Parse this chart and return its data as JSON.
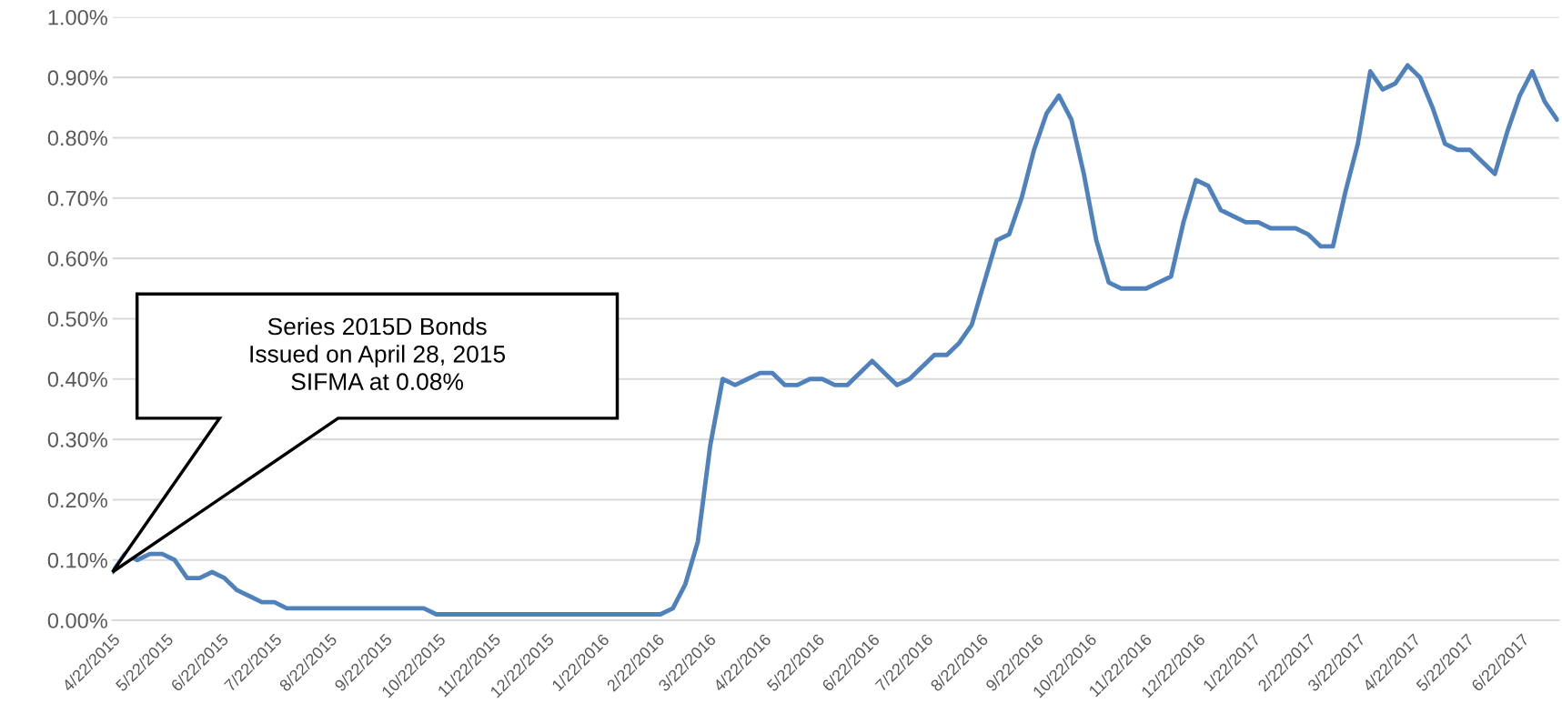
{
  "chart_data": {
    "type": "line",
    "x": [
      "2015-04-22",
      "2015-04-29",
      "2015-05-06",
      "2015-05-13",
      "2015-05-20",
      "2015-05-27",
      "2015-06-03",
      "2015-06-10",
      "2015-06-17",
      "2015-06-24",
      "2015-07-01",
      "2015-07-08",
      "2015-07-15",
      "2015-07-22",
      "2015-07-29",
      "2015-08-05",
      "2015-08-12",
      "2015-08-19",
      "2015-08-26",
      "2015-09-02",
      "2015-09-09",
      "2015-09-16",
      "2015-09-23",
      "2015-09-30",
      "2015-10-07",
      "2015-10-14",
      "2015-10-21",
      "2015-10-28",
      "2015-11-04",
      "2015-11-11",
      "2015-11-18",
      "2015-11-25",
      "2015-12-02",
      "2015-12-09",
      "2015-12-16",
      "2015-12-23",
      "2015-12-30",
      "2016-01-06",
      "2016-01-13",
      "2016-01-20",
      "2016-01-27",
      "2016-02-03",
      "2016-02-10",
      "2016-02-17",
      "2016-02-24",
      "2016-03-02",
      "2016-03-09",
      "2016-03-16",
      "2016-03-23",
      "2016-03-30",
      "2016-04-06",
      "2016-04-13",
      "2016-04-20",
      "2016-04-27",
      "2016-05-04",
      "2016-05-11",
      "2016-05-18",
      "2016-05-25",
      "2016-06-01",
      "2016-06-08",
      "2016-06-15",
      "2016-06-22",
      "2016-06-29",
      "2016-07-06",
      "2016-07-13",
      "2016-07-20",
      "2016-07-27",
      "2016-08-03",
      "2016-08-10",
      "2016-08-17",
      "2016-08-24",
      "2016-08-31",
      "2016-09-07",
      "2016-09-14",
      "2016-09-21",
      "2016-09-28",
      "2016-10-05",
      "2016-10-12",
      "2016-10-19",
      "2016-10-26",
      "2016-11-02",
      "2016-11-09",
      "2016-11-16",
      "2016-11-23",
      "2016-11-30",
      "2016-12-07",
      "2016-12-14",
      "2016-12-21",
      "2016-12-28",
      "2017-01-04",
      "2017-01-11",
      "2017-01-18",
      "2017-01-25",
      "2017-02-01",
      "2017-02-08",
      "2017-02-15",
      "2017-02-22",
      "2017-03-01",
      "2017-03-08",
      "2017-03-15",
      "2017-03-22",
      "2017-03-29",
      "2017-04-05",
      "2017-04-12",
      "2017-04-19",
      "2017-04-26",
      "2017-05-03",
      "2017-05-10",
      "2017-05-17",
      "2017-05-24",
      "2017-05-31",
      "2017-06-07",
      "2017-06-14",
      "2017-06-21",
      "2017-06-28",
      "2017-07-05",
      "2017-07-12"
    ],
    "series": [
      {
        "color": "#4f81bd",
        "values": [
          0.08,
          0.11,
          0.1,
          0.11,
          0.11,
          0.1,
          0.07,
          0.07,
          0.08,
          0.07,
          0.05,
          0.04,
          0.03,
          0.03,
          0.02,
          0.02,
          0.02,
          0.02,
          0.02,
          0.02,
          0.02,
          0.02,
          0.02,
          0.02,
          0.02,
          0.02,
          0.01,
          0.01,
          0.01,
          0.01,
          0.01,
          0.01,
          0.01,
          0.01,
          0.01,
          0.01,
          0.01,
          0.01,
          0.01,
          0.01,
          0.01,
          0.01,
          0.01,
          0.01,
          0.01,
          0.02,
          0.06,
          0.13,
          0.29,
          0.4,
          0.39,
          0.4,
          0.41,
          0.41,
          0.39,
          0.39,
          0.4,
          0.4,
          0.39,
          0.39,
          0.41,
          0.43,
          0.41,
          0.39,
          0.4,
          0.42,
          0.44,
          0.44,
          0.46,
          0.49,
          0.56,
          0.63,
          0.64,
          0.7,
          0.78,
          0.84,
          0.87,
          0.83,
          0.74,
          0.63,
          0.56,
          0.55,
          0.55,
          0.55,
          0.56,
          0.57,
          0.66,
          0.73,
          0.72,
          0.68,
          0.67,
          0.66,
          0.66,
          0.65,
          0.65,
          0.65,
          0.64,
          0.62,
          0.62,
          0.71,
          0.79,
          0.91,
          0.88,
          0.89,
          0.92,
          0.9,
          0.85,
          0.79,
          0.78,
          0.78,
          0.76,
          0.74,
          0.81,
          0.87,
          0.91,
          0.86,
          0.83
        ]
      }
    ],
    "xlim": [
      "2015-04-22",
      "2017-07-13"
    ],
    "xticks": [
      {
        "value": "2015-04-22",
        "label": "4/22/2015"
      },
      {
        "value": "2015-05-22",
        "label": "5/22/2015"
      },
      {
        "value": "2015-06-22",
        "label": "6/22/2015"
      },
      {
        "value": "2015-07-22",
        "label": "7/22/2015"
      },
      {
        "value": "2015-08-22",
        "label": "8/22/2015"
      },
      {
        "value": "2015-09-22",
        "label": "9/22/2015"
      },
      {
        "value": "2015-10-22",
        "label": "10/22/2015"
      },
      {
        "value": "2015-11-22",
        "label": "11/22/2015"
      },
      {
        "value": "2015-12-22",
        "label": "12/22/2015"
      },
      {
        "value": "2016-01-22",
        "label": "1/22/2016"
      },
      {
        "value": "2016-02-22",
        "label": "2/22/2016"
      },
      {
        "value": "2016-03-22",
        "label": "3/22/2016"
      },
      {
        "value": "2016-04-22",
        "label": "4/22/2016"
      },
      {
        "value": "2016-05-22",
        "label": "5/22/2016"
      },
      {
        "value": "2016-06-22",
        "label": "6/22/2016"
      },
      {
        "value": "2016-07-22",
        "label": "7/22/2016"
      },
      {
        "value": "2016-08-22",
        "label": "8/22/2016"
      },
      {
        "value": "2016-09-22",
        "label": "9/22/2016"
      },
      {
        "value": "2016-10-22",
        "label": "10/22/2016"
      },
      {
        "value": "2016-11-22",
        "label": "11/22/2016"
      },
      {
        "value": "2016-12-22",
        "label": "12/22/2016"
      },
      {
        "value": "2017-01-22",
        "label": "1/22/2017"
      },
      {
        "value": "2017-02-22",
        "label": "2/22/2017"
      },
      {
        "value": "2017-03-22",
        "label": "3/22/2017"
      },
      {
        "value": "2017-04-22",
        "label": "4/22/2017"
      },
      {
        "value": "2017-05-22",
        "label": "5/22/2017"
      },
      {
        "value": "2017-06-22",
        "label": "6/22/2017"
      }
    ],
    "ylim": [
      0,
      1.0
    ],
    "yticks": [
      {
        "value": 0,
        "label": "0.00%"
      },
      {
        "value": 0.1,
        "label": "0.10%"
      },
      {
        "value": 0.2,
        "label": "0.20%"
      },
      {
        "value": 0.3,
        "label": "0.30%"
      },
      {
        "value": 0.4,
        "label": "0.40%"
      },
      {
        "value": 0.5,
        "label": "0.50%"
      },
      {
        "value": 0.6,
        "label": "0.60%"
      },
      {
        "value": 0.7,
        "label": "0.70%"
      },
      {
        "value": 0.8,
        "label": "0.80%"
      },
      {
        "value": 0.9,
        "label": "0.90%"
      },
      {
        "value": 1.0,
        "label": "1.00%"
      }
    ],
    "grid": "y",
    "line_style": "solid",
    "marker": "none",
    "annotations": [
      "Series 2015D Bonds\nIssued on April 28, 2015\nSIFMA at 0.08%"
    ]
  }
}
